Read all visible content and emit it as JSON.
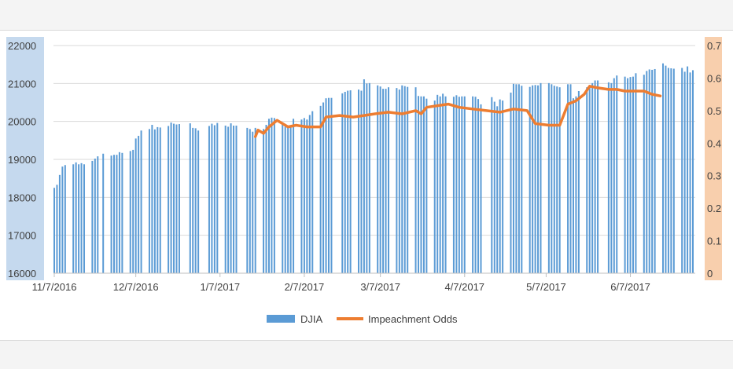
{
  "chart_data": {
    "type": "bar+line",
    "title": "",
    "xlabel": "",
    "ylabel": "",
    "y_left": {
      "range": [
        16000,
        22000
      ],
      "ticks": [
        "16000",
        "17000",
        "18000",
        "19000",
        "20000",
        "21000",
        "22000"
      ]
    },
    "y_right": {
      "range": [
        0,
        0.7
      ],
      "ticks": [
        "0",
        "0.1",
        "0.2",
        "0.3",
        "0.4",
        "0.5",
        "0.6",
        "0.7"
      ]
    },
    "x_range": [
      "2016-11-07",
      "2017-06-30"
    ],
    "x_ticks": [
      {
        "date": "2016-11-07",
        "label": "11/7/2016"
      },
      {
        "date": "2016-12-07",
        "label": "12/7/2016"
      },
      {
        "date": "2017-01-07",
        "label": "1/7/2017"
      },
      {
        "date": "2017-02-07",
        "label": "2/7/2017"
      },
      {
        "date": "2017-03-07",
        "label": "3/7/2017"
      },
      {
        "date": "2017-04-07",
        "label": "4/7/2017"
      },
      {
        "date": "2017-05-07",
        "label": "5/7/2017"
      },
      {
        "date": "2017-06-07",
        "label": "6/7/2017"
      }
    ],
    "grid": true,
    "legend_position": "bottom",
    "series": [
      {
        "name": "DJIA",
        "kind": "bar",
        "color": "#5b9bd5",
        "axis": "left",
        "points": [
          [
            "2016-11-07",
            18250
          ],
          [
            "2016-11-08",
            18330
          ],
          [
            "2016-11-09",
            18590
          ],
          [
            "2016-11-10",
            18810
          ],
          [
            "2016-11-11",
            18850
          ],
          [
            "2016-11-14",
            18870
          ],
          [
            "2016-11-15",
            18920
          ],
          [
            "2016-11-16",
            18870
          ],
          [
            "2016-11-17",
            18900
          ],
          [
            "2016-11-18",
            18870
          ],
          [
            "2016-11-21",
            18960
          ],
          [
            "2016-11-22",
            19020
          ],
          [
            "2016-11-23",
            19080
          ],
          [
            "2016-11-25",
            19150
          ],
          [
            "2016-11-28",
            19100
          ],
          [
            "2016-11-29",
            19120
          ],
          [
            "2016-11-30",
            19120
          ],
          [
            "2016-12-01",
            19190
          ],
          [
            "2016-12-02",
            19170
          ],
          [
            "2016-12-05",
            19220
          ],
          [
            "2016-12-06",
            19250
          ],
          [
            "2016-12-07",
            19550
          ],
          [
            "2016-12-08",
            19620
          ],
          [
            "2016-12-09",
            19760
          ],
          [
            "2016-12-12",
            19800
          ],
          [
            "2016-12-13",
            19910
          ],
          [
            "2016-12-14",
            19790
          ],
          [
            "2016-12-15",
            19850
          ],
          [
            "2016-12-16",
            19840
          ],
          [
            "2016-12-19",
            19880
          ],
          [
            "2016-12-20",
            19970
          ],
          [
            "2016-12-21",
            19940
          ],
          [
            "2016-12-22",
            19920
          ],
          [
            "2016-12-23",
            19930
          ],
          [
            "2016-12-27",
            19950
          ],
          [
            "2016-12-28",
            19830
          ],
          [
            "2016-12-29",
            19820
          ],
          [
            "2016-12-30",
            19760
          ],
          [
            "2017-01-03",
            19880
          ],
          [
            "2017-01-04",
            19940
          ],
          [
            "2017-01-05",
            19900
          ],
          [
            "2017-01-06",
            19960
          ],
          [
            "2017-01-09",
            19890
          ],
          [
            "2017-01-10",
            19860
          ],
          [
            "2017-01-11",
            19950
          ],
          [
            "2017-01-12",
            19890
          ],
          [
            "2017-01-13",
            19890
          ],
          [
            "2017-01-17",
            19830
          ],
          [
            "2017-01-18",
            19800
          ],
          [
            "2017-01-19",
            19730
          ],
          [
            "2017-01-20",
            19830
          ],
          [
            "2017-01-23",
            19800
          ],
          [
            "2017-01-24",
            19910
          ],
          [
            "2017-01-25",
            20070
          ],
          [
            "2017-01-26",
            20100
          ],
          [
            "2017-01-27",
            20090
          ],
          [
            "2017-01-30",
            19970
          ],
          [
            "2017-01-31",
            19860
          ],
          [
            "2017-02-01",
            19890
          ],
          [
            "2017-02-02",
            19880
          ],
          [
            "2017-02-03",
            20070
          ],
          [
            "2017-02-06",
            20050
          ],
          [
            "2017-02-07",
            20090
          ],
          [
            "2017-02-08",
            20050
          ],
          [
            "2017-02-09",
            20170
          ],
          [
            "2017-02-10",
            20270
          ],
          [
            "2017-02-13",
            20410
          ],
          [
            "2017-02-14",
            20500
          ],
          [
            "2017-02-15",
            20610
          ],
          [
            "2017-02-16",
            20620
          ],
          [
            "2017-02-17",
            20620
          ],
          [
            "2017-02-21",
            20740
          ],
          [
            "2017-02-22",
            20780
          ],
          [
            "2017-02-23",
            20810
          ],
          [
            "2017-02-24",
            20820
          ],
          [
            "2017-02-27",
            20840
          ],
          [
            "2017-02-28",
            20810
          ],
          [
            "2017-03-01",
            21110
          ],
          [
            "2017-03-02",
            21000
          ],
          [
            "2017-03-03",
            21010
          ],
          [
            "2017-03-06",
            20950
          ],
          [
            "2017-03-07",
            20920
          ],
          [
            "2017-03-08",
            20860
          ],
          [
            "2017-03-09",
            20860
          ],
          [
            "2017-03-10",
            20900
          ],
          [
            "2017-03-13",
            20880
          ],
          [
            "2017-03-14",
            20840
          ],
          [
            "2017-03-15",
            20950
          ],
          [
            "2017-03-16",
            20930
          ],
          [
            "2017-03-17",
            20910
          ],
          [
            "2017-03-20",
            20900
          ],
          [
            "2017-03-21",
            20670
          ],
          [
            "2017-03-22",
            20660
          ],
          [
            "2017-03-23",
            20660
          ],
          [
            "2017-03-24",
            20600
          ],
          [
            "2017-03-27",
            20550
          ],
          [
            "2017-03-28",
            20700
          ],
          [
            "2017-03-29",
            20660
          ],
          [
            "2017-03-30",
            20730
          ],
          [
            "2017-03-31",
            20660
          ],
          [
            "2017-04-03",
            20650
          ],
          [
            "2017-04-04",
            20690
          ],
          [
            "2017-04-05",
            20650
          ],
          [
            "2017-04-06",
            20660
          ],
          [
            "2017-04-07",
            20660
          ],
          [
            "2017-04-10",
            20660
          ],
          [
            "2017-04-11",
            20650
          ],
          [
            "2017-04-12",
            20590
          ],
          [
            "2017-04-13",
            20450
          ],
          [
            "2017-04-17",
            20640
          ],
          [
            "2017-04-18",
            20520
          ],
          [
            "2017-04-19",
            20400
          ],
          [
            "2017-04-20",
            20580
          ],
          [
            "2017-04-21",
            20550
          ],
          [
            "2017-04-24",
            20760
          ],
          [
            "2017-04-25",
            20990
          ],
          [
            "2017-04-26",
            20980
          ],
          [
            "2017-04-27",
            20980
          ],
          [
            "2017-04-28",
            20940
          ],
          [
            "2017-05-01",
            20910
          ],
          [
            "2017-05-02",
            20950
          ],
          [
            "2017-05-03",
            20960
          ],
          [
            "2017-05-04",
            20950
          ],
          [
            "2017-05-05",
            21010
          ],
          [
            "2017-05-08",
            21010
          ],
          [
            "2017-05-09",
            20980
          ],
          [
            "2017-05-10",
            20940
          ],
          [
            "2017-05-11",
            20920
          ],
          [
            "2017-05-12",
            20900
          ],
          [
            "2017-05-15",
            20980
          ],
          [
            "2017-05-16",
            20980
          ],
          [
            "2017-05-17",
            20610
          ],
          [
            "2017-05-18",
            20660
          ],
          [
            "2017-05-19",
            20800
          ],
          [
            "2017-05-22",
            20900
          ],
          [
            "2017-05-23",
            20940
          ],
          [
            "2017-05-24",
            21010
          ],
          [
            "2017-05-25",
            21080
          ],
          [
            "2017-05-26",
            21080
          ],
          [
            "2017-05-30",
            21030
          ],
          [
            "2017-05-31",
            21010
          ],
          [
            "2017-06-01",
            21140
          ],
          [
            "2017-06-02",
            21210
          ],
          [
            "2017-06-05",
            21180
          ],
          [
            "2017-06-06",
            21140
          ],
          [
            "2017-06-07",
            21170
          ],
          [
            "2017-06-08",
            21180
          ],
          [
            "2017-06-09",
            21270
          ],
          [
            "2017-06-12",
            21230
          ],
          [
            "2017-06-13",
            21330
          ],
          [
            "2017-06-14",
            21370
          ],
          [
            "2017-06-15",
            21360
          ],
          [
            "2017-06-16",
            21380
          ],
          [
            "2017-06-19",
            21530
          ],
          [
            "2017-06-20",
            21470
          ],
          [
            "2017-06-21",
            21410
          ],
          [
            "2017-06-22",
            21400
          ],
          [
            "2017-06-23",
            21390
          ],
          [
            "2017-06-26",
            21410
          ],
          [
            "2017-06-27",
            21310
          ],
          [
            "2017-06-28",
            21450
          ],
          [
            "2017-06-29",
            21290
          ],
          [
            "2017-06-30",
            21350
          ]
        ]
      },
      {
        "name": "Impeachment Odds",
        "kind": "line",
        "color": "#ed7d31",
        "axis": "right",
        "points": [
          [
            "2017-01-20",
            0.42
          ],
          [
            "2017-01-21",
            0.44
          ],
          [
            "2017-01-23",
            0.43
          ],
          [
            "2017-01-25",
            0.45
          ],
          [
            "2017-01-28",
            0.47
          ],
          [
            "2017-01-30",
            0.46
          ],
          [
            "2017-02-01",
            0.45
          ],
          [
            "2017-02-04",
            0.455
          ],
          [
            "2017-02-08",
            0.45
          ],
          [
            "2017-02-13",
            0.45
          ],
          [
            "2017-02-15",
            0.48
          ],
          [
            "2017-02-20",
            0.485
          ],
          [
            "2017-02-25",
            0.48
          ],
          [
            "2017-03-01",
            0.485
          ],
          [
            "2017-03-05",
            0.49
          ],
          [
            "2017-03-10",
            0.495
          ],
          [
            "2017-03-15",
            0.49
          ],
          [
            "2017-03-20",
            0.5
          ],
          [
            "2017-03-22",
            0.49
          ],
          [
            "2017-03-24",
            0.51
          ],
          [
            "2017-03-28",
            0.515
          ],
          [
            "2017-04-01",
            0.52
          ],
          [
            "2017-04-05",
            0.51
          ],
          [
            "2017-04-10",
            0.505
          ],
          [
            "2017-04-15",
            0.5
          ],
          [
            "2017-04-20",
            0.495
          ],
          [
            "2017-04-25",
            0.505
          ],
          [
            "2017-04-30",
            0.5
          ],
          [
            "2017-05-03",
            0.46
          ],
          [
            "2017-05-08",
            0.455
          ],
          [
            "2017-05-12",
            0.455
          ],
          [
            "2017-05-15",
            0.52
          ],
          [
            "2017-05-18",
            0.53
          ],
          [
            "2017-05-21",
            0.55
          ],
          [
            "2017-05-23",
            0.575
          ],
          [
            "2017-05-26",
            0.57
          ],
          [
            "2017-05-30",
            0.565
          ],
          [
            "2017-06-02",
            0.565
          ],
          [
            "2017-06-05",
            0.56
          ],
          [
            "2017-06-08",
            0.56
          ],
          [
            "2017-06-12",
            0.56
          ],
          [
            "2017-06-15",
            0.55
          ],
          [
            "2017-06-18",
            0.545
          ]
        ]
      }
    ]
  }
}
